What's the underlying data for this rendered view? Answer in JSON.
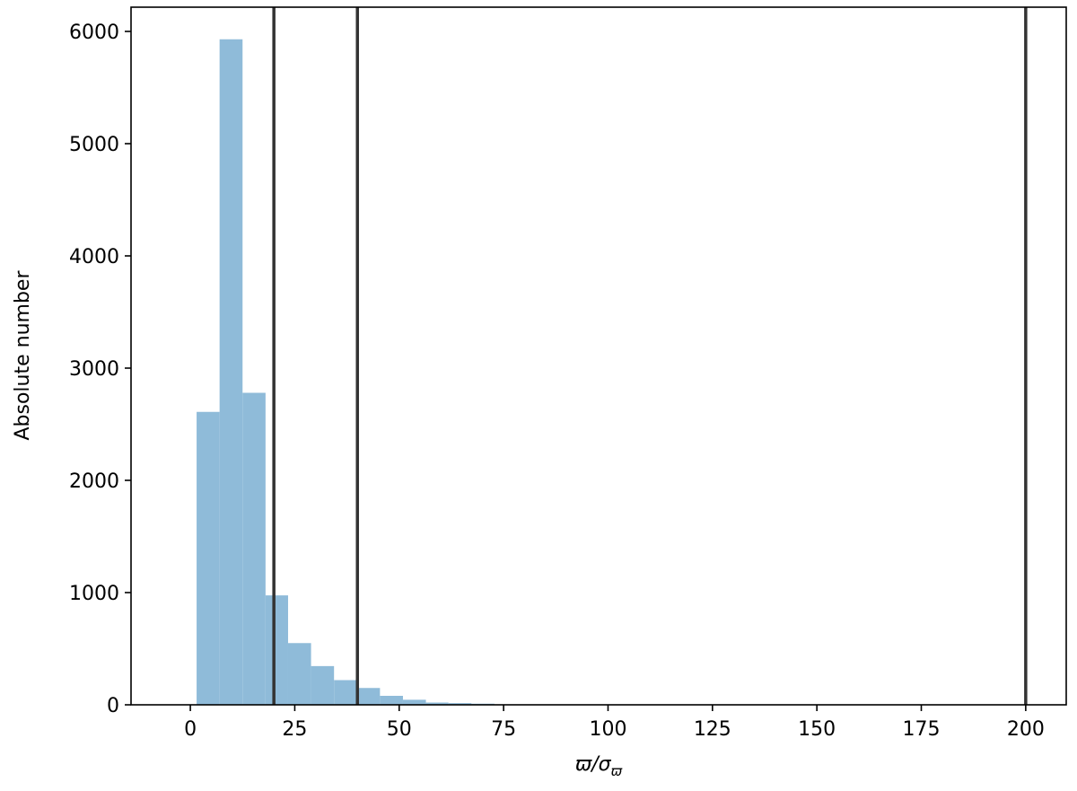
{
  "chart_data": {
    "type": "histogram",
    "bins": [
      1.5,
      7.0,
      12.5,
      18.0,
      23.4,
      28.9,
      34.4,
      39.9,
      45.4,
      50.9,
      56.4,
      61.8,
      67.3,
      72.8
    ],
    "counts": [
      2610,
      5930,
      2780,
      975,
      550,
      345,
      220,
      150,
      80,
      45,
      20,
      15,
      10
    ],
    "color": "#8fbbd9",
    "vlines": [
      20,
      40,
      200
    ],
    "vline_color": "#333333",
    "xlim": [
      -14.2,
      209.7
    ],
    "ylim": [
      0,
      6216
    ],
    "xticks": [
      0,
      25,
      50,
      75,
      100,
      125,
      150,
      175,
      200
    ],
    "yticks": [
      0,
      1000,
      2000,
      3000,
      4000,
      5000,
      6000
    ],
    "xlabel": "ϖ/σ",
    "xlabel_subscript": "ϖ",
    "ylabel": "Absolute number",
    "grid": false
  }
}
